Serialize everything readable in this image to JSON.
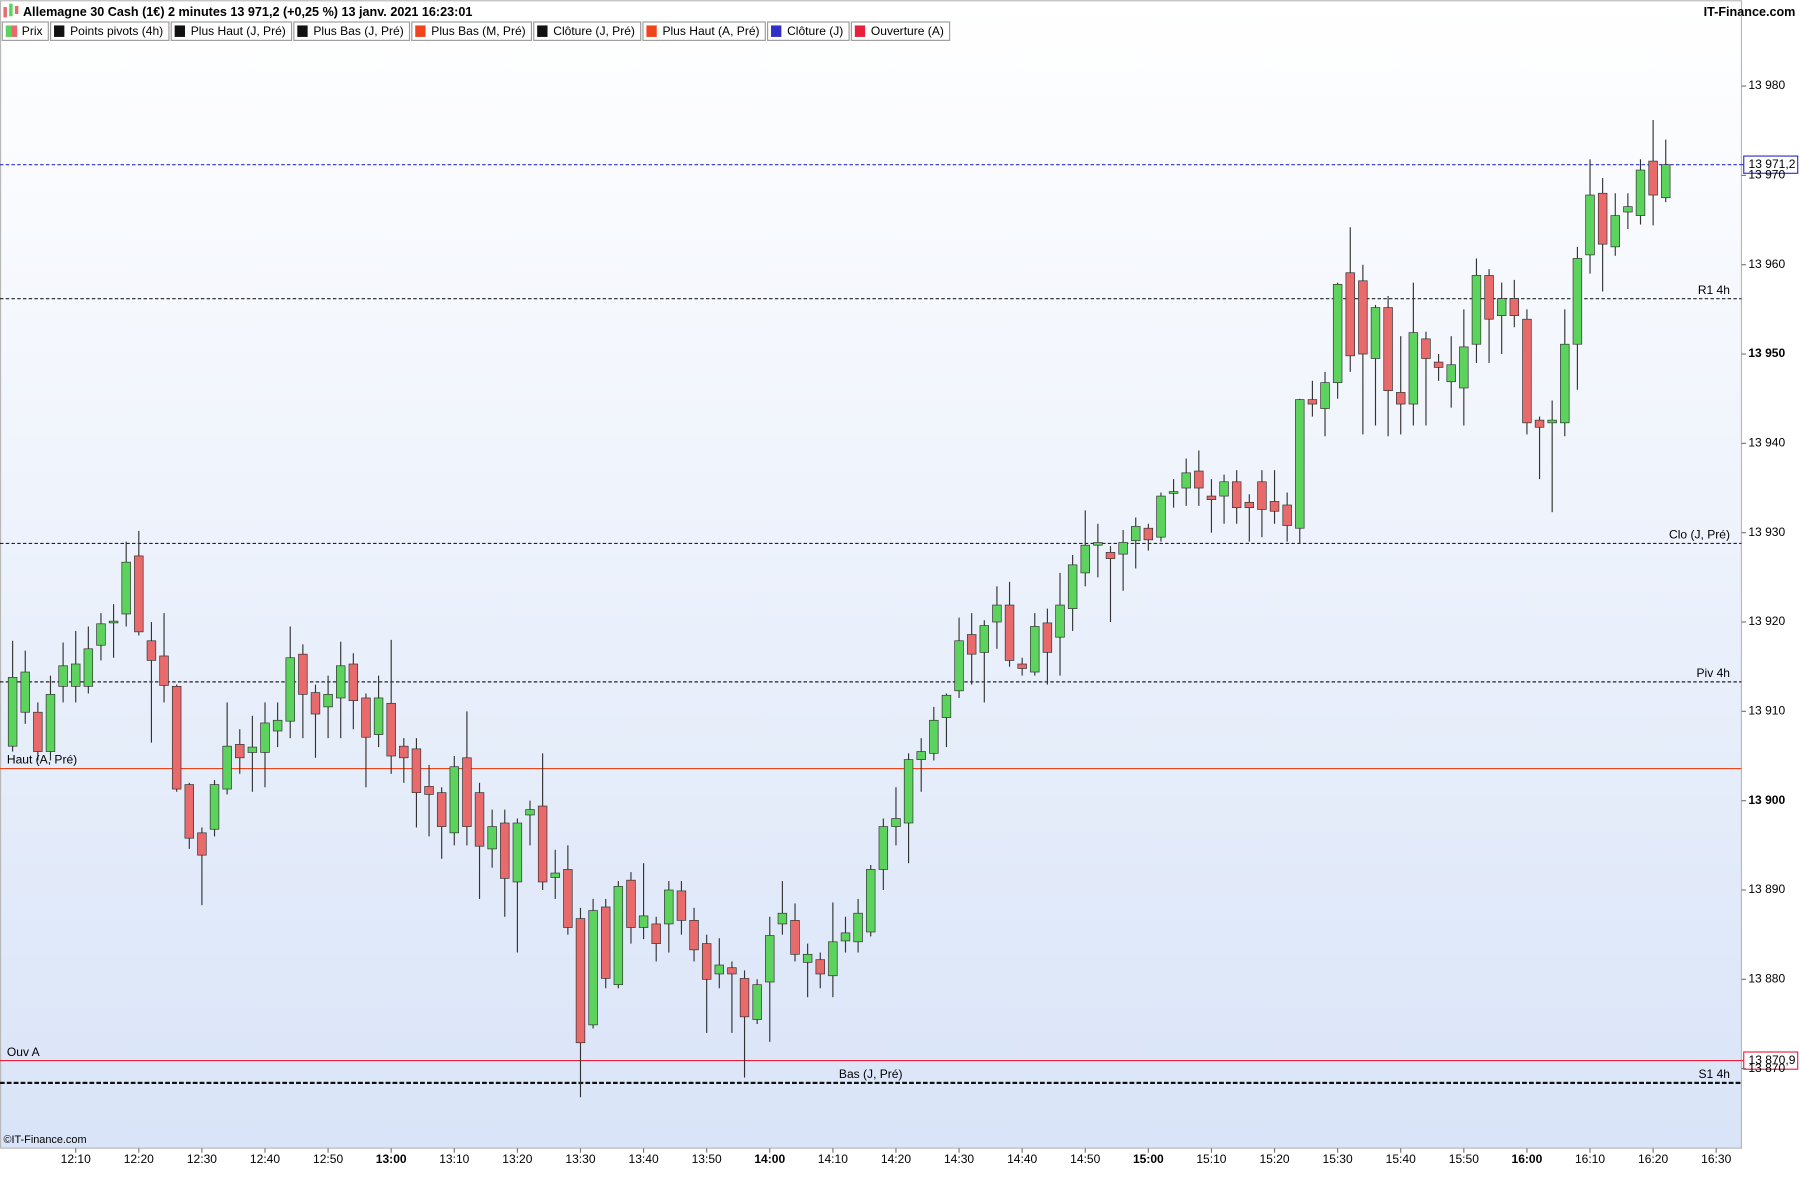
{
  "chart_data": {
    "type": "candlestick",
    "title": "Allemagne 30 Cash (1€) 2 minutes 13 971,2 (+0,25 %) 13 janv. 2021 16:23:01",
    "source": "IT-Finance.com",
    "footer": "©IT-Finance.com",
    "legend": [
      {
        "name": "Prix",
        "color": "#5cd35c"
      },
      {
        "name": "Points pivots (4h)",
        "color": "#111111"
      },
      {
        "name": "Plus Haut (J, Pré)",
        "color": "#111111"
      },
      {
        "name": "Plus Bas (J, Pré)",
        "color": "#111111"
      },
      {
        "name": "Plus Bas (M, Pré)",
        "color": "#f0441c"
      },
      {
        "name": "Clôture (J, Pré)",
        "color": "#111111"
      },
      {
        "name": "Plus Haut (A, Pré)",
        "color": "#f0441c"
      },
      {
        "name": "Clôture (J)",
        "color": "#3030c8"
      },
      {
        "name": "Ouverture (A)",
        "color": "#e8203c"
      }
    ],
    "up_color": "#5cd35c",
    "down_color": "#e86a6a",
    "x": [
      "12:00",
      "12:02",
      "12:04",
      "12:06",
      "12:08",
      "12:10",
      "12:12",
      "12:14",
      "12:16",
      "12:18",
      "12:20",
      "12:22",
      "12:24",
      "12:26",
      "12:28",
      "12:30",
      "12:32",
      "12:34",
      "12:36",
      "12:38",
      "12:40",
      "12:42",
      "12:44",
      "12:46",
      "12:48",
      "12:50",
      "12:52",
      "12:54",
      "12:56",
      "12:58",
      "13:00",
      "13:02",
      "13:04",
      "13:06",
      "13:08",
      "13:10",
      "13:12",
      "13:14",
      "13:16",
      "13:18",
      "13:20",
      "13:22",
      "13:24",
      "13:26",
      "13:28",
      "13:30",
      "13:32",
      "13:34",
      "13:36",
      "13:38",
      "13:40",
      "13:42",
      "13:44",
      "13:46",
      "13:48",
      "13:50",
      "13:52",
      "13:54",
      "13:56",
      "13:58",
      "14:00",
      "14:02",
      "14:04",
      "14:06",
      "14:08",
      "14:10",
      "14:12",
      "14:14",
      "14:16",
      "14:18",
      "14:20",
      "14:22",
      "14:24",
      "14:26",
      "14:28",
      "14:30",
      "14:32",
      "14:34",
      "14:36",
      "14:38",
      "14:40",
      "14:42",
      "14:44",
      "14:46",
      "14:48",
      "14:50",
      "14:52",
      "14:54",
      "14:56",
      "14:58",
      "15:00",
      "15:02",
      "15:04",
      "15:06",
      "15:08",
      "15:10",
      "15:12",
      "15:14",
      "15:16",
      "15:18",
      "15:20",
      "15:22",
      "15:24",
      "15:26",
      "15:28",
      "15:30",
      "15:32",
      "15:34",
      "15:36",
      "15:38",
      "15:40",
      "15:42",
      "15:44",
      "15:46",
      "15:48",
      "15:50",
      "15:52",
      "15:54",
      "15:56",
      "15:58",
      "16:00",
      "16:02",
      "16:04",
      "16:06",
      "16:08",
      "16:10",
      "16:12",
      "16:14",
      "16:16",
      "16:18",
      "16:20",
      "16:22"
    ],
    "open": [
      13906.1,
      13909.9,
      13909.9,
      13905.5,
      13912.8,
      13912.8,
      13912.8,
      13917.4,
      13919.9,
      13920.9,
      13927.4,
      13917.9,
      13916.2,
      13912.8,
      13901.8,
      13896.4,
      13896.8,
      13901.3,
      13906.3,
      13905.4,
      13905.4,
      13907.8,
      13908.9,
      13916.4,
      13912.1,
      13910.5,
      13911.5,
      13915.3,
      13911.5,
      13907.4,
      13910.9,
      13906.1,
      13905.8,
      13901.6,
      13900.9,
      13896.4,
      13904.8,
      13900.9,
      13894.6,
      13897.5,
      13890.9,
      13898.4,
      13899.4,
      13891.4,
      13892.3,
      13886.8,
      13874.9,
      13888.1,
      13879.4,
      13891.1,
      13885.8,
      13886.2,
      13886.2,
      13889.9,
      13886.6,
      13884.0,
      13880.6,
      13881.3,
      13880.1,
      13875.5,
      13879.7,
      13886.2,
      13886.6,
      13881.9,
      13882.2,
      13880.4,
      13884.3,
      13884.2,
      13885.3,
      13892.3,
      13897.1,
      13897.5,
      13904.6,
      13905.3,
      13909.3,
      13912.3,
      13918.6,
      13916.6,
      13920.0,
      13921.9,
      13915.3,
      13914.4,
      13919.9,
      13918.3,
      13921.5,
      13925.5,
      13928.6,
      13927.8,
      13927.6,
      13929.1,
      13930.5,
      13929.5,
      13934.4,
      13935.0,
      13936.9,
      13934.1,
      13934.1,
      13935.7,
      13933.4,
      13935.7,
      13933.5,
      13933.1,
      13930.5,
      13944.9,
      13943.9,
      13946.8,
      13959.1,
      13958.2,
      13949.5,
      13955.2,
      13945.7,
      13944.4,
      13951.7,
      13949.1,
      13946.9,
      13946.2,
      13951.1,
      13958.8,
      13954.3,
      13956.2,
      13953.9,
      13942.6,
      13942.3,
      13942.3,
      13951.1,
      13961.1,
      13968.0,
      13962.0,
      13965.9,
      13965.5,
      13971.6,
      13967.5
    ],
    "high": [
      13917.9,
      13916.8,
      13911.0,
      13914.0,
      13917.7,
      13919.0,
      13919.5,
      13921.0,
      13922.0,
      13929.0,
      13930.2,
      13920.0,
      13921.0,
      13913.0,
      13902.0,
      13897.0,
      13902.3,
      13911.0,
      13908.0,
      13909.5,
      13911.0,
      13911.0,
      13919.5,
      13917.5,
      13913.0,
      13914.0,
      13917.8,
      13916.5,
      13912.0,
      13914.0,
      13918.0,
      13907.0,
      13907.0,
      13904.0,
      13901.5,
      13905.0,
      13910.0,
      13902.0,
      13899.0,
      13899.0,
      13898.0,
      13900.0,
      13905.3,
      13894.5,
      13895.0,
      13888.0,
      13889.0,
      13889.0,
      13891.0,
      13892.0,
      13893.0,
      13887.0,
      13891.0,
      13891.0,
      13888.0,
      13885.0,
      13884.6,
      13882.0,
      13881.0,
      13880.0,
      13887.0,
      13891.0,
      13888.5,
      13884.0,
      13883.0,
      13888.6,
      13887.0,
      13889.0,
      13892.8,
      13898.0,
      13901.5,
      13905.3,
      13907.0,
      13910.5,
      13912.0,
      13920.5,
      13921.0,
      13920.2,
      13924.0,
      13924.5,
      13916.0,
      13921.0,
      13921.5,
      13925.5,
      13927.5,
      13932.5,
      13931.0,
      13928.5,
      13930.3,
      13931.7,
      13931.0,
      13934.5,
      13936.0,
      13938.3,
      13939.2,
      13936.0,
      13936.5,
      13937.0,
      13934.3,
      13937.0,
      13937.0,
      13934.5,
      13945.0,
      13947.0,
      13948.0,
      13958.0,
      13964.2,
      13960.0,
      13955.5,
      13956.5,
      13952.0,
      13958.0,
      13952.5,
      13950.0,
      13952.0,
      13955.0,
      13960.7,
      13959.5,
      13958.0,
      13958.3,
      13955.0,
      13943.0,
      13944.8,
      13955.0,
      13962.0,
      13971.8,
      13969.7,
      13968.0,
      13968.0,
      13971.8,
      13976.2,
      13974.0
    ],
    "low": [
      13905.5,
      13908.6,
      13904.5,
      13904.5,
      13911.0,
      13911.0,
      13912.0,
      13915.7,
      13916.0,
      13919.5,
      13918.5,
      13906.5,
      13911.0,
      13901.0,
      13894.6,
      13888.3,
      13896.0,
      13900.7,
      13903.0,
      13901.0,
      13901.5,
      13906.0,
      13907.0,
      13907.0,
      13904.8,
      13907.0,
      13907.0,
      13908.0,
      13901.5,
      13906.0,
      13903.0,
      13902.0,
      13897.0,
      13896.0,
      13893.5,
      13895.0,
      13895.0,
      13889.0,
      13892.5,
      13887.0,
      13883.0,
      13895.0,
      13890.0,
      13889.0,
      13885.0,
      13866.8,
      13874.5,
      13879.0,
      13879.0,
      13884.0,
      13884.5,
      13882.0,
      13883.0,
      13885.0,
      13882.0,
      13874.0,
      13879.0,
      13874.0,
      13869.0,
      13875.0,
      13873.0,
      13885.0,
      13882.0,
      13878.0,
      13879.0,
      13878.0,
      13883.0,
      13883.0,
      13884.8,
      13890.0,
      13895.0,
      13893.0,
      13901.0,
      13904.5,
      13906.0,
      13911.5,
      13913.0,
      13911.0,
      13917.0,
      13915.0,
      13914.0,
      13914.0,
      13913.0,
      13914.0,
      13919.0,
      13924.0,
      13925.0,
      13920.0,
      13923.5,
      13926.0,
      13928.0,
      13929.0,
      13932.8,
      13933.0,
      13933.0,
      13930.0,
      13931.0,
      13931.0,
      13929.0,
      13929.5,
      13931.0,
      13929.0,
      13928.8,
      13943.0,
      13940.8,
      13945.0,
      13948.0,
      13941.0,
      13942.0,
      13940.8,
      13941.0,
      13942.0,
      13942.0,
      13947.0,
      13944.0,
      13942.0,
      13949.0,
      13949.0,
      13950.0,
      13953.0,
      13941.0,
      13936.0,
      13932.3,
      13940.8,
      13946.0,
      13959.0,
      13957.0,
      13961.0,
      13964.0,
      13964.5,
      13964.4,
      13967.0
    ],
    "close": [
      13913.8,
      13914.4,
      13905.5,
      13911.9,
      13915.1,
      13915.3,
      13917.0,
      13919.8,
      13920.1,
      13926.7,
      13918.9,
      13915.7,
      13912.9,
      13901.3,
      13895.8,
      13893.9,
      13901.8,
      13906.1,
      13904.8,
      13906.0,
      13908.7,
      13909.0,
      13916.0,
      13911.9,
      13909.7,
      13911.9,
      13915.1,
      13911.2,
      13907.1,
      13911.5,
      13905.0,
      13904.8,
      13900.9,
      13900.7,
      13897.1,
      13903.8,
      13897.1,
      13894.9,
      13897.1,
      13891.3,
      13897.5,
      13899.0,
      13890.9,
      13891.9,
      13885.8,
      13872.9,
      13887.7,
      13880.1,
      13890.4,
      13885.8,
      13887.1,
      13884.0,
      13890.0,
      13886.6,
      13883.3,
      13880.0,
      13881.6,
      13880.6,
      13875.8,
      13879.4,
      13884.9,
      13887.4,
      13882.8,
      13882.8,
      13880.6,
      13884.2,
      13885.2,
      13887.4,
      13892.3,
      13897.1,
      13898.0,
      13904.6,
      13905.5,
      13909.0,
      13911.8,
      13917.9,
      13916.4,
      13919.6,
      13921.9,
      13915.7,
      13914.8,
      13919.5,
      13916.6,
      13921.9,
      13926.4,
      13928.6,
      13928.9,
      13927.1,
      13928.9,
      13930.7,
      13929.2,
      13934.1,
      13934.6,
      13936.7,
      13935.0,
      13933.7,
      13935.7,
      13932.8,
      13932.8,
      13932.6,
      13932.4,
      13930.8,
      13944.9,
      13944.4,
      13946.8,
      13957.8,
      13949.8,
      13950.0,
      13955.2,
      13945.9,
      13944.4,
      13952.4,
      13949.5,
      13948.5,
      13948.8,
      13950.8,
      13958.8,
      13953.9,
      13956.2,
      13954.3,
      13942.3,
      13941.8,
      13942.6,
      13951.1,
      13960.7,
      13967.8,
      13962.3,
      13965.5,
      13966.5,
      13970.6,
      13967.8,
      13971.2
    ],
    "levels": [
      {
        "label": "Clôture (J)",
        "value": 13971.2,
        "value_label": "13 971,2",
        "color": "#3030c8",
        "style": "dashed"
      },
      {
        "label": "R1 4h",
        "value": 13956.2,
        "color": "#222222",
        "style": "dashed",
        "label_position": "right"
      },
      {
        "label": "Clo (J, Pré)",
        "value": 13928.8,
        "color": "#222222",
        "style": "dashed",
        "label_position": "right"
      },
      {
        "label": "Piv 4h",
        "value": 13913.3,
        "color": "#222222",
        "style": "dashed",
        "label_position": "right"
      },
      {
        "label": "Haut (A, Pré)",
        "value": 13903.6,
        "color": "#f0441c",
        "style": "solid",
        "label_position": "left"
      },
      {
        "label": "Ouv A",
        "value": 13870.9,
        "value_label": "13 870,9",
        "color": "#e8203c",
        "style": "solid",
        "label_position": "left"
      },
      {
        "label": "Bas (J, Pré)",
        "value": 13868.4,
        "color": "#111111",
        "style": "dashed-bold",
        "label_position": "center"
      },
      {
        "label": "S1 4h",
        "value": 13868.4,
        "color": "#111111",
        "style": "dashed-bold",
        "label_position": "right"
      }
    ],
    "xlim": [
      "11:58",
      "16:34"
    ],
    "xticks": [
      "12:10",
      "12:20",
      "12:30",
      "12:40",
      "12:50",
      "13:00",
      "13:10",
      "13:20",
      "13:30",
      "13:40",
      "13:50",
      "14:00",
      "14:10",
      "14:20",
      "14:30",
      "14:40",
      "14:50",
      "15:00",
      "15:10",
      "15:20",
      "15:30",
      "15:40",
      "15:50",
      "16:00",
      "16:10",
      "16:20",
      "16:30"
    ],
    "ylim": [
      13861.1,
      13987.3
    ],
    "yticks": [
      {
        "value": 13870,
        "label": "13 870"
      },
      {
        "value": 13880,
        "label": "13 880"
      },
      {
        "value": 13890,
        "label": "13 890"
      },
      {
        "value": 13900,
        "label": "13 900"
      },
      {
        "value": 13910,
        "label": "13 910"
      },
      {
        "value": 13920,
        "label": "13 920"
      },
      {
        "value": 13930,
        "label": "13 930"
      },
      {
        "value": 13940,
        "label": "13 940"
      },
      {
        "value": 13950,
        "label": "13 950"
      },
      {
        "value": 13960,
        "label": "13 960"
      },
      {
        "value": 13970,
        "label": "13 970"
      },
      {
        "value": 13980,
        "label": "13 980"
      }
    ]
  }
}
